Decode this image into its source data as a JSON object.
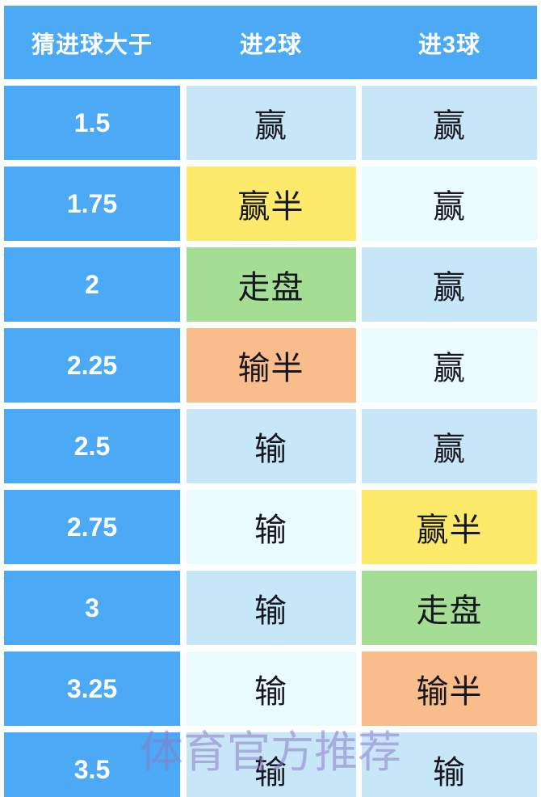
{
  "colors": {
    "header_blue": "#4BA9F5",
    "header_text": "#FFFFFF",
    "cell_light_blue": "#C7E6F8",
    "cell_pale_blue": "#EAFBFE",
    "cell_yellow": "#FDE96A",
    "cell_green": "#A4DE94",
    "cell_orange": "#F9BD8B",
    "cell_text": "#17171F",
    "watermark_color": "rgba(142,122,199,0.55)"
  },
  "watermark": {
    "text": "体育官方推荐"
  },
  "table": {
    "headers": [
      {
        "label": "猜进球大于"
      },
      {
        "label": "进2球"
      },
      {
        "label": "进3球"
      }
    ],
    "rows": [
      {
        "handicap": "1.5",
        "goal2": {
          "text": "赢",
          "bg": "#C7E6F8"
        },
        "goal3": {
          "text": "赢",
          "bg": "#C7E6F8"
        }
      },
      {
        "handicap": "1.75",
        "goal2": {
          "text": "赢半",
          "bg": "#FDE96A"
        },
        "goal3": {
          "text": "赢",
          "bg": "#EAFBFE"
        }
      },
      {
        "handicap": "2",
        "goal2": {
          "text": "走盘",
          "bg": "#A4DE94"
        },
        "goal3": {
          "text": "赢",
          "bg": "#C7E6F8"
        }
      },
      {
        "handicap": "2.25",
        "goal2": {
          "text": "输半",
          "bg": "#F9BD8B"
        },
        "goal3": {
          "text": "赢",
          "bg": "#EAFBFE"
        }
      },
      {
        "handicap": "2.5",
        "goal2": {
          "text": "输",
          "bg": "#C7E6F8"
        },
        "goal3": {
          "text": "赢",
          "bg": "#C7E6F8"
        }
      },
      {
        "handicap": "2.75",
        "goal2": {
          "text": "输",
          "bg": "#EAFBFE"
        },
        "goal3": {
          "text": "赢半",
          "bg": "#FDE96A"
        }
      },
      {
        "handicap": "3",
        "goal2": {
          "text": "输",
          "bg": "#C7E6F8"
        },
        "goal3": {
          "text": "走盘",
          "bg": "#A4DE94"
        }
      },
      {
        "handicap": "3.25",
        "goal2": {
          "text": "输",
          "bg": "#EAFBFE"
        },
        "goal3": {
          "text": "输半",
          "bg": "#F9BD8B"
        }
      },
      {
        "handicap": "3.5",
        "goal2": {
          "text": "输",
          "bg": "#C7E6F8"
        },
        "goal3": {
          "text": "输",
          "bg": "#C7E6F8"
        }
      }
    ]
  },
  "chart_data": {
    "type": "table",
    "title": "猜进球大于 - 进球数结果对照表",
    "columns": [
      "猜进球大于",
      "进2球",
      "进3球"
    ],
    "rows": [
      [
        "1.5",
        "赢",
        "赢"
      ],
      [
        "1.75",
        "赢半",
        "赢"
      ],
      [
        "2",
        "走盘",
        "赢"
      ],
      [
        "2.25",
        "输半",
        "赢"
      ],
      [
        "2.5",
        "输",
        "赢"
      ],
      [
        "2.75",
        "输",
        "赢半"
      ],
      [
        "3",
        "输",
        "走盘"
      ],
      [
        "3.25",
        "输",
        "输半"
      ],
      [
        "3.5",
        "输",
        "输"
      ]
    ],
    "legend_colors": {
      "赢/输 (odd rows)": "#C7E6F8",
      "赢/输 (even rows)": "#EAFBFE",
      "赢半": "#FDE96A",
      "走盘": "#A4DE94",
      "输半": "#F9BD8B"
    }
  }
}
